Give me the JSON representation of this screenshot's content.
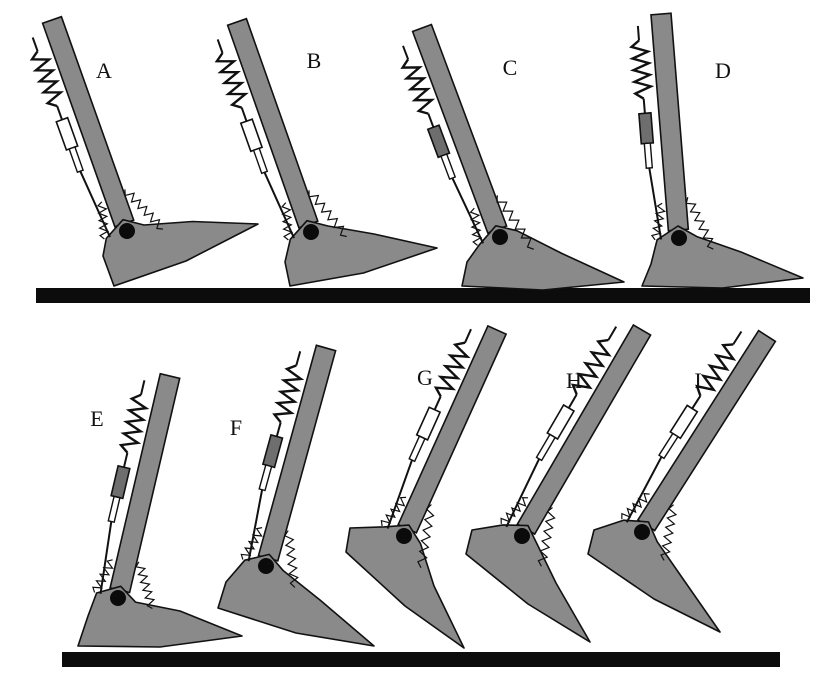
{
  "figure": {
    "description_labels": [
      "A",
      "B",
      "C",
      "D",
      "E",
      "F",
      "G",
      "H",
      "I"
    ],
    "panels": [
      {
        "label": "A",
        "damper_state": "open"
      },
      {
        "label": "B",
        "damper_state": "open"
      },
      {
        "label": "C",
        "damper_state": "locked"
      },
      {
        "label": "D",
        "damper_state": "locked"
      },
      {
        "label": "E",
        "damper_state": "locked"
      },
      {
        "label": "F",
        "damper_state": "locked"
      },
      {
        "label": "G",
        "damper_state": "open"
      },
      {
        "label": "H",
        "damper_state": "open"
      },
      {
        "label": "I",
        "damper_state": "open"
      }
    ],
    "colors": {
      "ground": "#0c0c0c",
      "limb_fill": "#8a8a8a",
      "outline": "#111111",
      "damper_open": "#ffffff",
      "damper_locked": "#6e6e6e",
      "joint": "#0b0b0b"
    }
  }
}
